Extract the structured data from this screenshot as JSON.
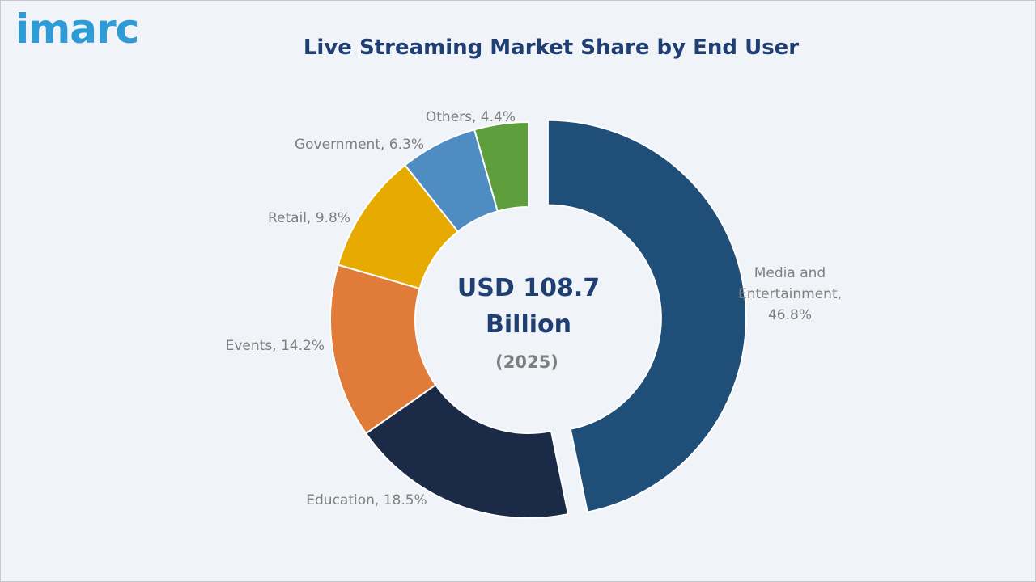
{
  "logo": {
    "text": "imarc"
  },
  "chart_data": {
    "type": "pie",
    "title": "Live Streaming Market Share by End User",
    "center_text": {
      "line1": "USD 108.7",
      "line2": "Billion",
      "year": "(2025)"
    },
    "categories": [
      "Media and Entertainment",
      "Education",
      "Events",
      "Retail",
      "Government",
      "Others"
    ],
    "values": [
      46.8,
      18.5,
      14.2,
      9.8,
      6.3,
      4.4
    ],
    "unit": "%",
    "labels": [
      [
        "Media and",
        "Entertainment,",
        "46.8%"
      ],
      [
        "Education, 18.5%"
      ],
      [
        "Events, 14.2%"
      ],
      [
        "Retail, 9.8%"
      ],
      [
        "Government, 6.3%"
      ],
      [
        "Others, 4.4%"
      ]
    ],
    "colors": [
      "#1f4e79",
      "#1b2a47",
      "#e07b39",
      "#e6aa00",
      "#4f8cc1",
      "#5f9e3c"
    ],
    "exploded": "Media and Entertainment",
    "donut": true
  }
}
